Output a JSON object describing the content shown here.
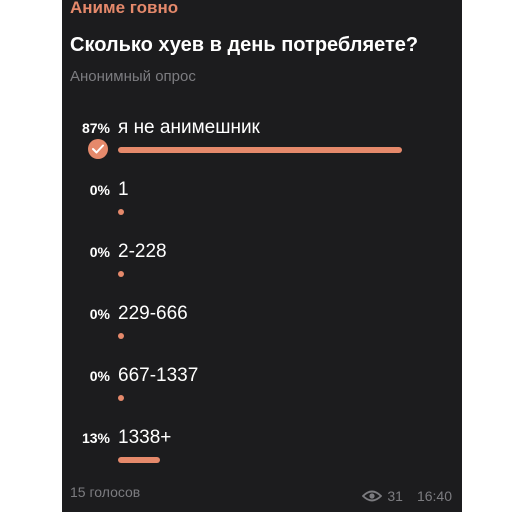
{
  "channel": {
    "name": "Аниме говно"
  },
  "poll": {
    "question": "Сколько хуев в день потребляете?",
    "type": "Анонимный опрос",
    "options": [
      {
        "percent_label": "87%",
        "label": "я не анимешник",
        "share": 0.87,
        "selected": true
      },
      {
        "percent_label": "0%",
        "label": "1",
        "share": 0,
        "selected": false
      },
      {
        "percent_label": "0%",
        "label": "2-228",
        "share": 0,
        "selected": false
      },
      {
        "percent_label": "0%",
        "label": "229-666",
        "share": 0,
        "selected": false
      },
      {
        "percent_label": "0%",
        "label": "667-1337",
        "share": 0,
        "selected": false
      },
      {
        "percent_label": "13%",
        "label": "1338+",
        "share": 0.13,
        "selected": false
      }
    ],
    "votes_label": "15 голосов"
  },
  "meta": {
    "views": "31",
    "time": "16:40"
  },
  "colors": {
    "accent": "#e5896b",
    "background": "#1c1c1e",
    "muted": "#7c7c80"
  },
  "icons": {
    "selected": "check-icon",
    "views": "eye-icon"
  }
}
